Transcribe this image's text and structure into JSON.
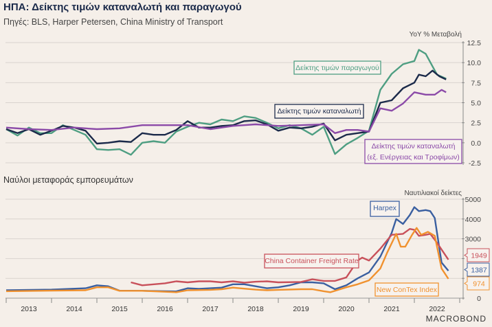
{
  "title": "ΗΠΑ: Δείκτης τιμών καταναλωτή και παραγωγού",
  "subtitle": "Πηγές: BLS, Harper Petersen, China Ministry of Transport",
  "logo": "MACROBOND",
  "chart_data": [
    {
      "type": "line",
      "ylabel": "YoY % Μεταβολή",
      "ylim": [
        -2.5,
        12.5
      ],
      "yticks": [
        "12.5",
        "10.0",
        "7.5",
        "5.0",
        "2.5",
        "0.0",
        "-2.5"
      ],
      "grid": true,
      "xlim": [
        2013,
        2023
      ],
      "series": [
        {
          "name": "Δείκτης τιμών παραγωγού",
          "color": "#4e9e82",
          "x": [
            2013.0,
            2013.25,
            2013.5,
            2013.75,
            2014.0,
            2014.25,
            2014.5,
            2014.75,
            2015.0,
            2015.25,
            2015.5,
            2015.75,
            2016.0,
            2016.25,
            2016.5,
            2016.75,
            2017.0,
            2017.25,
            2017.5,
            2017.75,
            2018.0,
            2018.25,
            2018.5,
            2018.75,
            2019.0,
            2019.25,
            2019.5,
            2019.75,
            2020.0,
            2020.25,
            2020.5,
            2020.75,
            2021.0,
            2021.25,
            2021.5,
            2021.75,
            2022.0,
            2022.1,
            2022.25,
            2022.5,
            2022.7
          ],
          "y": [
            1.7,
            0.9,
            1.9,
            1.2,
            1.2,
            2.2,
            1.6,
            1.0,
            -0.8,
            -0.9,
            -0.8,
            -1.5,
            0.0,
            0.2,
            0.0,
            1.4,
            2.0,
            2.5,
            2.3,
            2.9,
            2.7,
            3.3,
            3.1,
            2.5,
            1.8,
            2.2,
            1.8,
            1.0,
            2.0,
            -1.4,
            -0.2,
            0.6,
            1.5,
            6.6,
            8.6,
            9.8,
            10.2,
            11.6,
            11.1,
            8.5,
            8.0
          ]
        },
        {
          "name": "Δείκτης τιμών καταναλωτή",
          "color": "#1b2a4a",
          "x": [
            2013.0,
            2013.25,
            2013.5,
            2013.75,
            2014.0,
            2014.25,
            2014.5,
            2014.75,
            2015.0,
            2015.25,
            2015.5,
            2015.75,
            2016.0,
            2016.25,
            2016.5,
            2016.75,
            2017.0,
            2017.25,
            2017.5,
            2017.75,
            2018.0,
            2018.25,
            2018.5,
            2018.75,
            2019.0,
            2019.25,
            2019.5,
            2019.75,
            2020.0,
            2020.25,
            2020.5,
            2020.75,
            2021.0,
            2021.25,
            2021.5,
            2021.75,
            2022.0,
            2022.1,
            2022.25,
            2022.4,
            2022.55,
            2022.7
          ],
          "y": [
            1.7,
            1.2,
            1.7,
            1.0,
            1.5,
            2.1,
            1.9,
            1.5,
            -0.1,
            0.0,
            0.2,
            0.1,
            1.2,
            1.0,
            1.0,
            1.6,
            2.7,
            1.9,
            1.9,
            2.1,
            2.2,
            2.7,
            2.8,
            2.3,
            1.5,
            1.9,
            1.8,
            2.0,
            2.4,
            0.3,
            1.0,
            1.2,
            1.4,
            5.0,
            5.3,
            6.8,
            7.5,
            8.5,
            8.3,
            9.0,
            8.3,
            7.9
          ]
        },
        {
          "name": "Δείκτης τιμών καταναλωτή (εξ. Ενέργειας και Τροφίμων)",
          "label_lines": [
            "Δείκτης τιμών καταναλωτή",
            "(εξ. Ενέργειας και Τροφίμων)"
          ],
          "color": "#8b4aa8",
          "x": [
            2013.0,
            2013.5,
            2014.0,
            2014.5,
            2015.0,
            2015.5,
            2016.0,
            2016.5,
            2017.0,
            2017.5,
            2018.0,
            2018.5,
            2019.0,
            2019.5,
            2020.0,
            2020.25,
            2020.5,
            2020.75,
            2021.0,
            2021.25,
            2021.5,
            2021.75,
            2022.0,
            2022.25,
            2022.45,
            2022.6,
            2022.7
          ],
          "y": [
            1.9,
            1.7,
            1.6,
            1.9,
            1.7,
            1.8,
            2.2,
            2.2,
            2.2,
            1.7,
            2.1,
            2.3,
            2.1,
            2.2,
            2.3,
            1.2,
            1.6,
            1.6,
            1.4,
            4.3,
            4.0,
            4.9,
            6.3,
            6.0,
            6.0,
            6.6,
            6.3
          ]
        }
      ]
    },
    {
      "type": "line",
      "title": "Ναύλοι μεταφοράς εμπορευμάτων",
      "ylabel": "Ναυτιλιακοί δείκτες",
      "ylim": [
        0,
        5000
      ],
      "yticks": [
        "5000",
        "4000",
        "3000",
        "0"
      ],
      "grid": true,
      "xlim": [
        2013,
        2023
      ],
      "xticks": [
        "2013",
        "2014",
        "2015",
        "2016",
        "2017",
        "2018",
        "2019",
        "2020",
        "2021",
        "2022"
      ],
      "series": [
        {
          "name": "Harpex",
          "color": "#3a5fa0",
          "last_value": "1387",
          "x": [
            2013.0,
            2014.0,
            2014.75,
            2015.0,
            2015.25,
            2015.5,
            2016.0,
            2016.75,
            2017.0,
            2017.25,
            2017.5,
            2017.75,
            2018.0,
            2018.25,
            2018.5,
            2018.75,
            2019.0,
            2019.25,
            2019.5,
            2019.75,
            2020.0,
            2020.25,
            2020.5,
            2020.75,
            2021.0,
            2021.25,
            2021.5,
            2021.6,
            2021.75,
            2021.9,
            2022.0,
            2022.1,
            2022.25,
            2022.35,
            2022.45,
            2022.6,
            2022.75
          ],
          "y": [
            400,
            430,
            500,
            650,
            600,
            380,
            370,
            340,
            500,
            470,
            500,
            530,
            700,
            700,
            600,
            500,
            550,
            650,
            800,
            800,
            750,
            450,
            650,
            1000,
            1300,
            2100,
            3300,
            4000,
            3750,
            4200,
            4600,
            4400,
            4450,
            4400,
            4050,
            1800,
            1387
          ]
        },
        {
          "name": "China Container Freight Rate",
          "color": "#c8505a",
          "last_value": "1949",
          "x": [
            2015.75,
            2016.0,
            2016.5,
            2016.75,
            2017.0,
            2017.25,
            2017.5,
            2017.75,
            2018.0,
            2018.25,
            2018.5,
            2018.75,
            2019.0,
            2019.5,
            2019.75,
            2020.0,
            2020.25,
            2020.5,
            2020.75,
            2020.85,
            2021.0,
            2021.25,
            2021.5,
            2021.75,
            2021.9,
            2022.0,
            2022.1,
            2022.25,
            2022.35,
            2022.5,
            2022.75
          ],
          "y": [
            800,
            650,
            750,
            850,
            800,
            850,
            850,
            800,
            850,
            780,
            830,
            850,
            800,
            820,
            950,
            870,
            870,
            1050,
            1900,
            2050,
            1900,
            2500,
            3200,
            3250,
            3500,
            3450,
            3150,
            3200,
            3250,
            2800,
            1949
          ]
        },
        {
          "name": "New ConTex Index",
          "color": "#f0912e",
          "last_value": "974",
          "x": [
            2013.0,
            2014.0,
            2014.75,
            2015.0,
            2015.25,
            2015.5,
            2016.0,
            2016.75,
            2017.0,
            2017.5,
            2017.75,
            2018.0,
            2018.25,
            2018.5,
            2018.75,
            2019.0,
            2019.5,
            2019.75,
            2020.0,
            2020.15,
            2020.5,
            2020.75,
            2021.0,
            2021.25,
            2021.4,
            2021.6,
            2021.7,
            2021.8,
            2021.95,
            2022.05,
            2022.15,
            2022.3,
            2022.45,
            2022.6,
            2022.75
          ],
          "y": [
            350,
            380,
            400,
            550,
            550,
            370,
            370,
            300,
            400,
            420,
            450,
            530,
            480,
            430,
            400,
            420,
            450,
            450,
            350,
            300,
            550,
            700,
            900,
            1500,
            2300,
            3250,
            2600,
            2600,
            3200,
            3550,
            3200,
            3350,
            3150,
            1500,
            974
          ]
        }
      ]
    }
  ]
}
